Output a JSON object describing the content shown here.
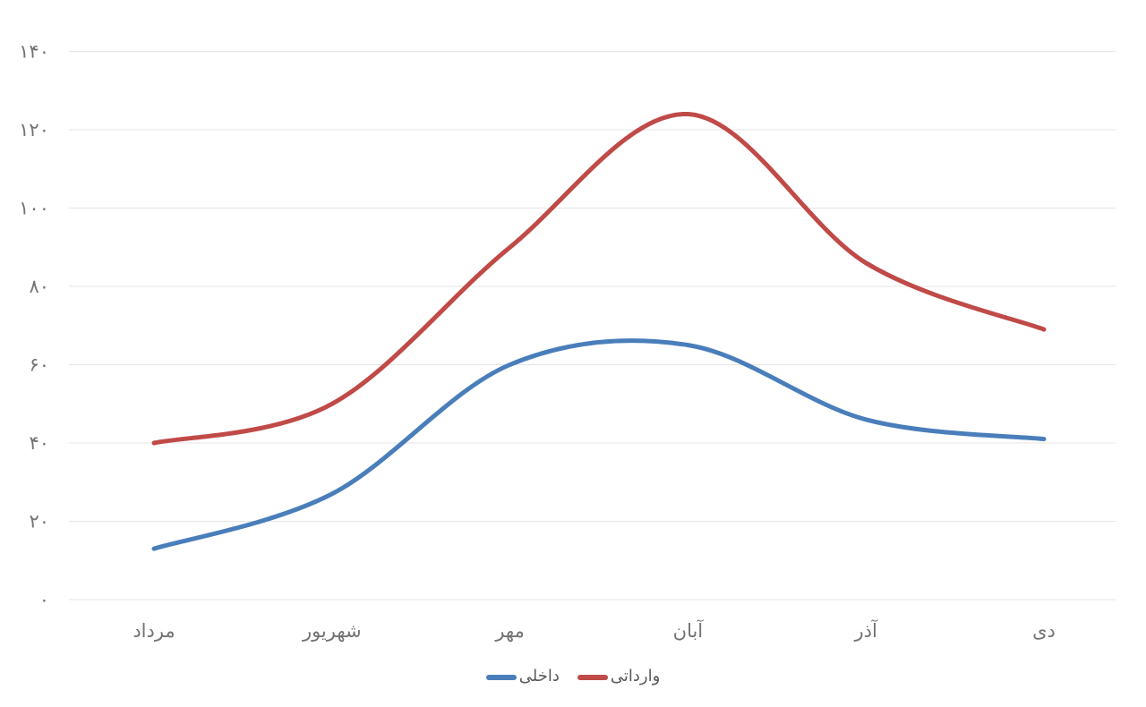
{
  "chart_data": {
    "type": "line",
    "smooth": true,
    "grid": true,
    "title": "",
    "xlabel": "",
    "ylabel": "",
    "ylim": [
      0,
      140
    ],
    "legend_position": "bottom",
    "categories": [
      "مرداد",
      "شهریور",
      "مهر",
      "آبان",
      "آذر",
      "دی"
    ],
    "y_ticks": [
      {
        "value": 0,
        "label": "۰"
      },
      {
        "value": 20,
        "label": "۲۰"
      },
      {
        "value": 40,
        "label": "۴۰"
      },
      {
        "value": 60,
        "label": "۶۰"
      },
      {
        "value": 80,
        "label": "۸۰"
      },
      {
        "value": 100,
        "label": "۱۰۰"
      },
      {
        "value": 120,
        "label": "۱۲۰"
      },
      {
        "value": 140,
        "label": "۱۴۰"
      }
    ],
    "series": [
      {
        "name": "داخلی",
        "color": "#4a7ebb",
        "values": [
          13,
          27,
          60,
          65,
          46,
          41
        ]
      },
      {
        "name": "وارداتی",
        "color": "#c04a47",
        "values": [
          40,
          50,
          90,
          124,
          86,
          69
        ]
      }
    ]
  },
  "colors": {
    "background": "#ffffff",
    "gridline": "#e6e6e6",
    "axis_text": "#737373",
    "legend_text": "#595959",
    "series_domestic": "#4a7ebb",
    "series_imported": "#c04a47"
  }
}
